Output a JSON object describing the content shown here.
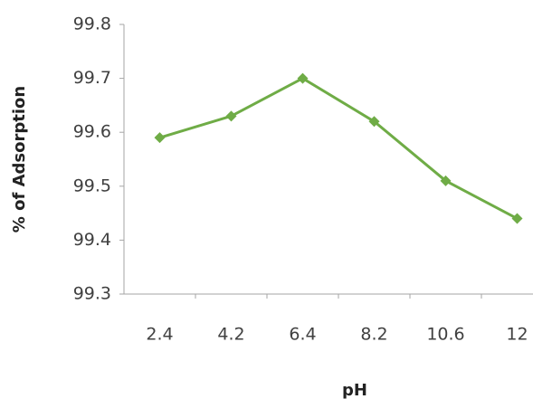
{
  "chart_data": {
    "type": "line",
    "x_label": "pH",
    "y_label": "% of Adsorption",
    "categories": [
      "2.4",
      "4.2",
      "6.4",
      "8.2",
      "10.6",
      "12"
    ],
    "values": [
      99.59,
      99.63,
      99.7,
      99.62,
      99.51,
      99.44
    ],
    "color": "#6fac46",
    "ylim": [
      99.3,
      99.8
    ],
    "yticks": [
      99.3,
      99.4,
      99.5,
      99.6,
      99.7,
      99.8
    ],
    "grid": false
  }
}
